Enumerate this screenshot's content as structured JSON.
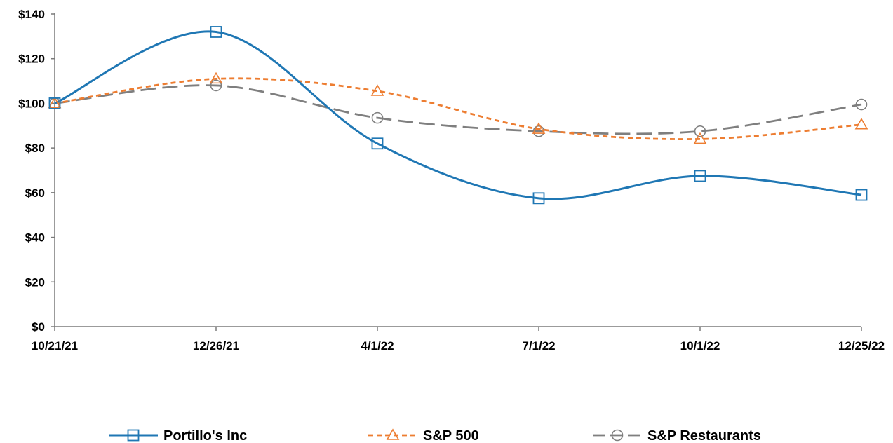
{
  "chart_data": {
    "type": "line",
    "title": "",
    "xlabel": "",
    "ylabel": "",
    "categories": [
      "10/21/21",
      "12/26/21",
      "4/1/22",
      "7/1/22",
      "10/1/22",
      "12/25/22"
    ],
    "y_ticks": [
      "$0",
      "$20",
      "$40",
      "$60",
      "$80",
      "$100",
      "$120",
      "$140"
    ],
    "ylim": [
      0,
      140
    ],
    "grid": false,
    "legend_position": "bottom",
    "series": [
      {
        "name": "Portillo's Inc",
        "values": [
          100,
          132,
          82,
          57.5,
          67.5,
          59
        ],
        "color": "#1f77b4",
        "marker": "square",
        "line_style": "solid"
      },
      {
        "name": "S&P 500",
        "values": [
          100,
          111,
          105.5,
          88.5,
          84,
          90.5
        ],
        "color": "#ed7d31",
        "marker": "triangle",
        "line_style": "dashed"
      },
      {
        "name": "S&P Restaurants",
        "values": [
          100,
          108,
          93.5,
          87.5,
          87.5,
          99.5
        ],
        "color": "#7f7f7f",
        "marker": "circle",
        "line_style": "long-dash"
      }
    ]
  }
}
